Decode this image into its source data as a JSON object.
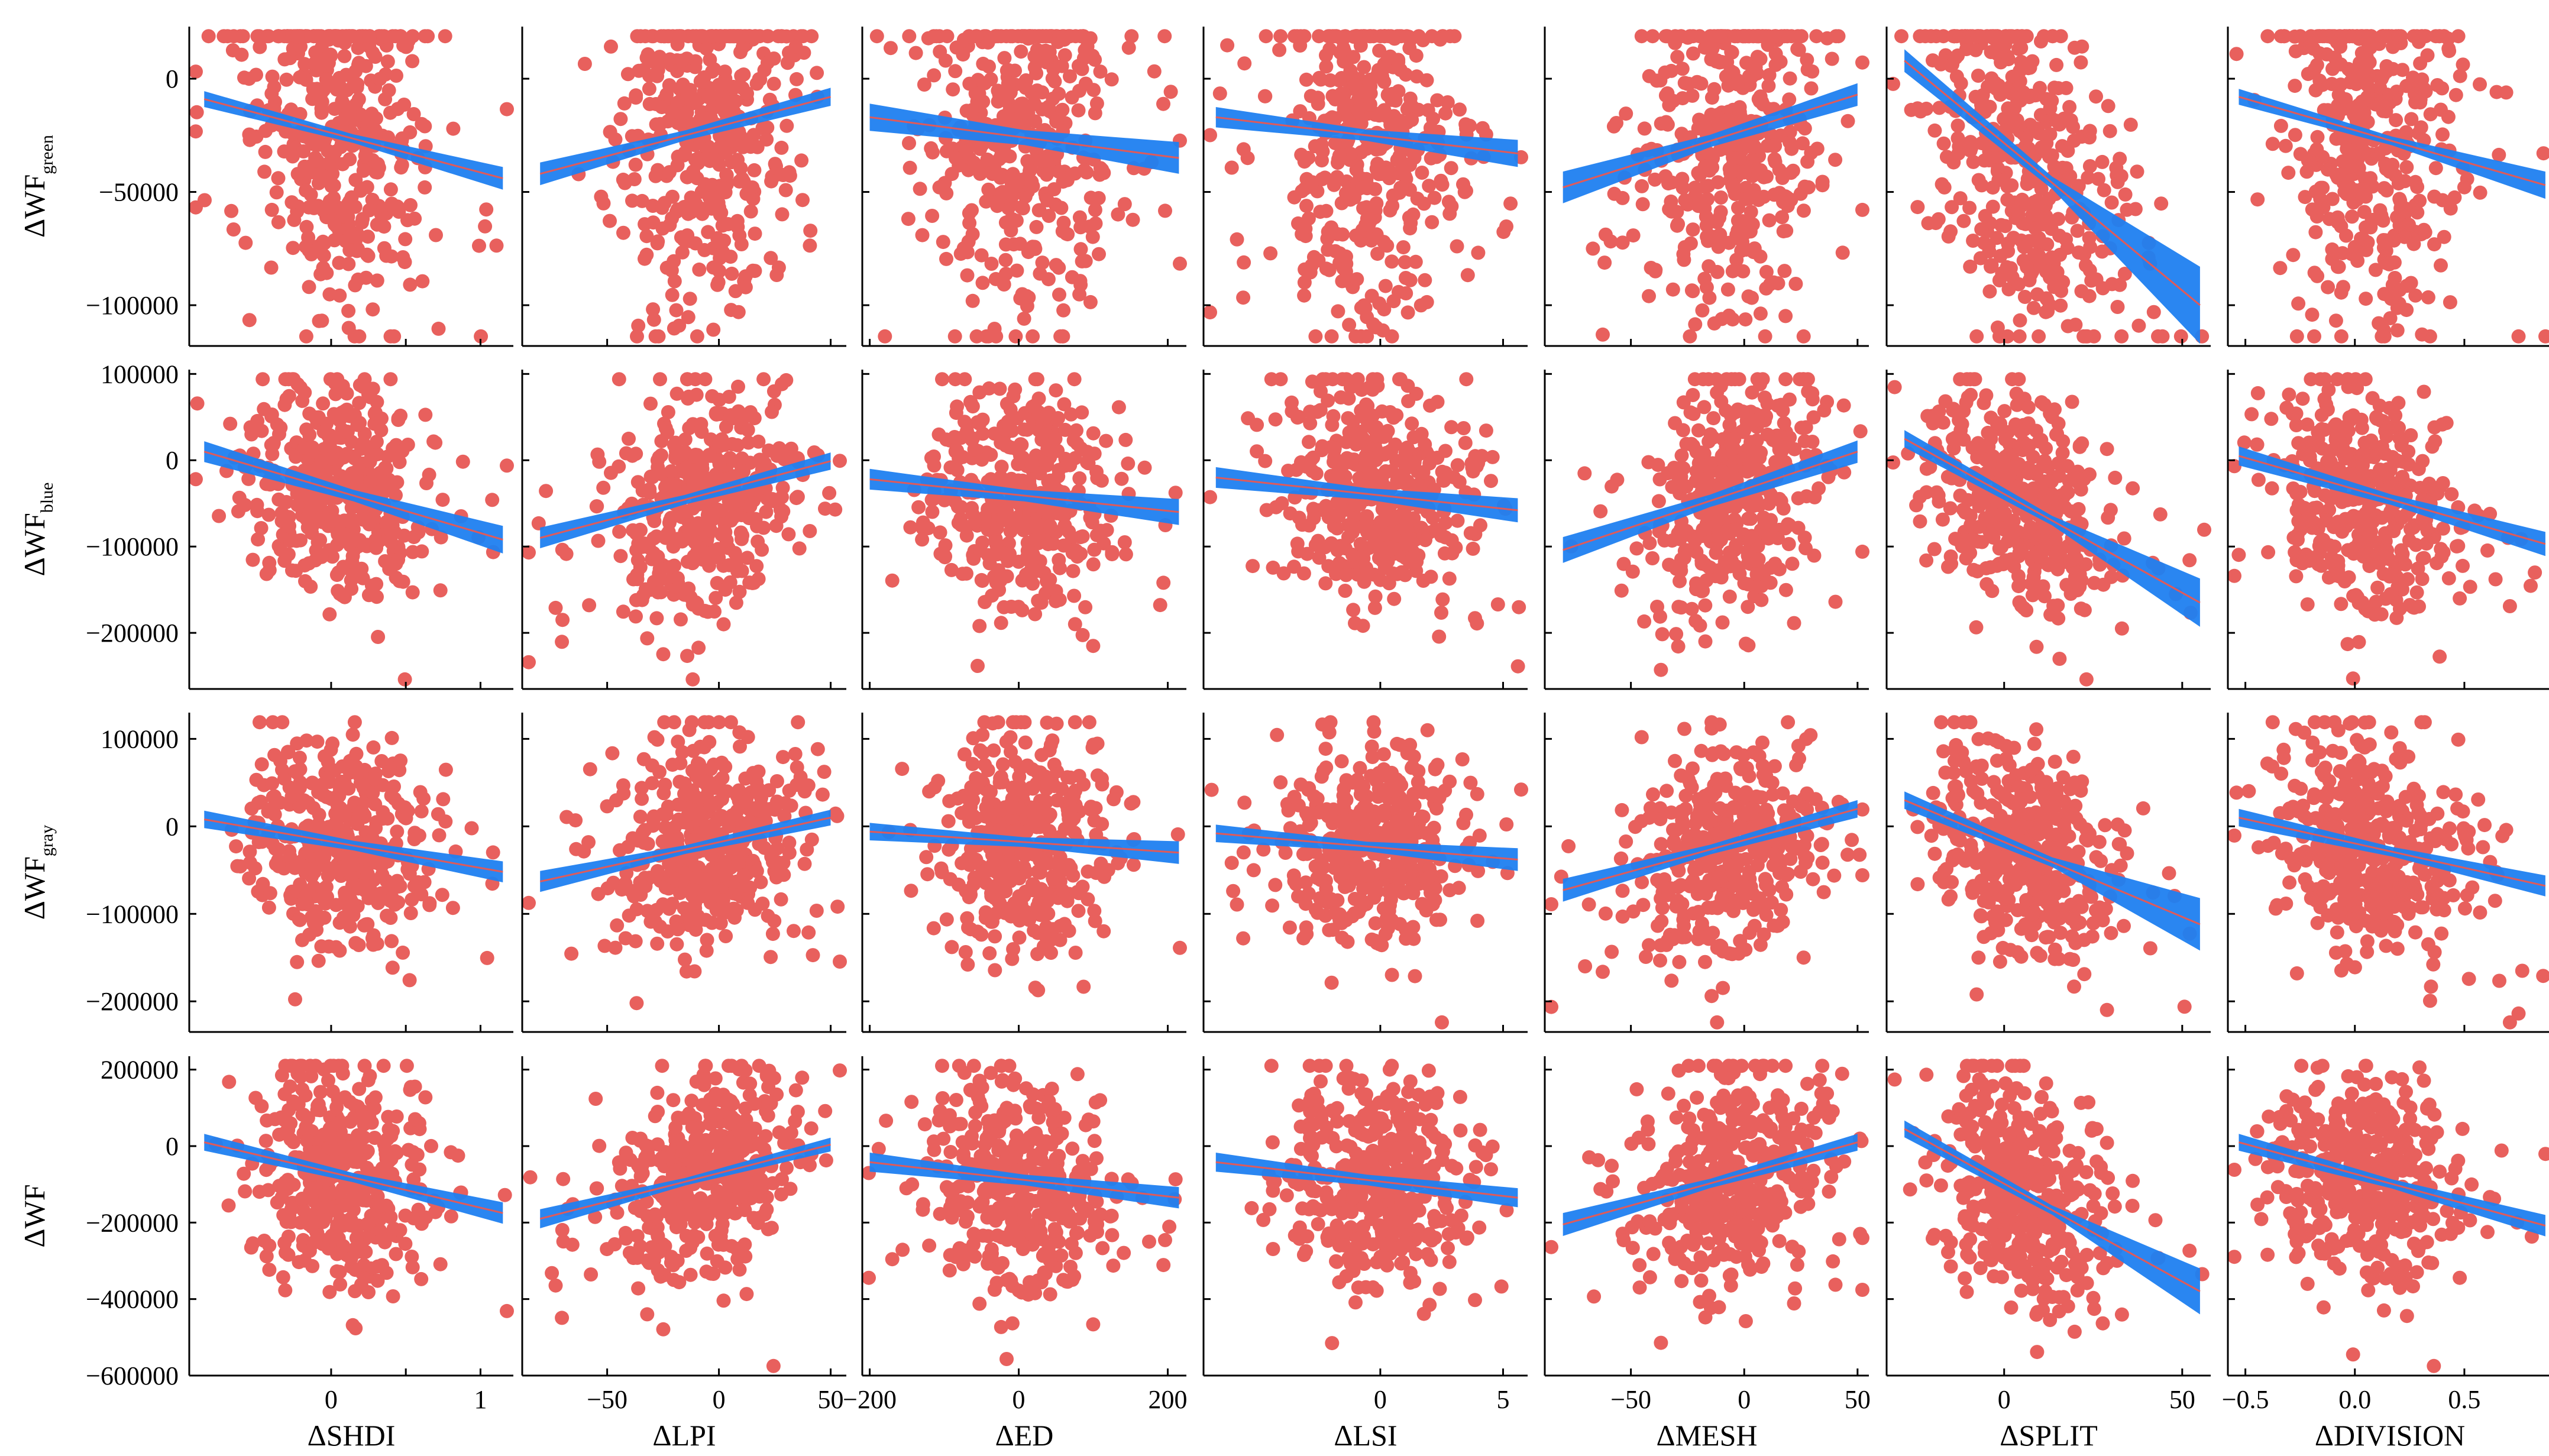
{
  "chart_data": {
    "type": "scatter",
    "layout": "4x7 grid of scatter plots with linear regression fit and confidence band",
    "colors": {
      "points": "#e8605d",
      "fit_band": "#1f7ff0",
      "fit_line": "#e05a5a"
    },
    "columns": [
      {
        "name": "ΔSHDI",
        "xlim": [
          -0.95,
          1.22
        ],
        "ticks": [
          0,
          0.5,
          1
        ],
        "tick_labels": [
          "0",
          "",
          "1"
        ]
      },
      {
        "name": "ΔLPI",
        "xlim": [
          -88,
          57
        ],
        "ticks": [
          -50,
          0,
          50
        ],
        "tick_labels": [
          "−50",
          "0",
          "50"
        ]
      },
      {
        "name": "ΔED",
        "xlim": [
          -210,
          225
        ],
        "ticks": [
          -200,
          0,
          200
        ],
        "tick_labels": [
          "−200",
          "0",
          "200"
        ]
      },
      {
        "name": "ΔLSI",
        "xlim": [
          -7.2,
          6.0
        ],
        "ticks": [
          0,
          5
        ],
        "tick_labels": [
          "0",
          "5"
        ]
      },
      {
        "name": "ΔMESH",
        "xlim": [
          -88,
          55
        ],
        "ticks": [
          -50,
          0,
          50
        ],
        "tick_labels": [
          "−50",
          "0",
          "50"
        ]
      },
      {
        "name": "ΔSPLIT",
        "xlim": [
          -33,
          58
        ],
        "ticks": [
          0,
          50
        ],
        "tick_labels": [
          "0",
          "50"
        ]
      },
      {
        "name": "ΔDIVISION",
        "xlim": [
          -0.58,
          0.9
        ],
        "ticks": [
          -0.5,
          0,
          0.5
        ],
        "tick_labels": [
          "−0.5",
          "0.0",
          "0.5"
        ]
      }
    ],
    "rows": [
      {
        "base": "ΔWF",
        "subscript": "green",
        "ylim": [
          -118000,
          23000
        ],
        "ticks": [
          0,
          -50000,
          -100000
        ],
        "tick_labels": [
          "0",
          "−50000",
          "−100000"
        ],
        "scale": 40000
      },
      {
        "base": "ΔWF",
        "subscript": "blue",
        "ylim": [
          -265000,
          105000
        ],
        "ticks": [
          100000,
          0,
          -100000,
          -200000
        ],
        "tick_labels": [
          "100000",
          "0",
          "−100000",
          "−200000"
        ],
        "scale": 65000
      },
      {
        "base": "ΔWF",
        "subscript": "gray",
        "ylim": [
          -235000,
          130000
        ],
        "ticks": [
          100000,
          0,
          -100000,
          -200000
        ],
        "tick_labels": [
          "100000",
          "0",
          "−100000",
          "−200000"
        ],
        "scale": 60000
      },
      {
        "base": "ΔWF",
        "subscript": "",
        "ylim": [
          -600000,
          235000
        ],
        "ticks": [
          200000,
          0,
          -200000,
          -400000,
          -600000
        ],
        "tick_labels": [
          "200000",
          "0",
          "−200000",
          "−400000",
          "−600000"
        ],
        "scale": 140000
      }
    ],
    "fits": [
      [
        {
          "x": [
            -0.85,
            1.15
          ],
          "y": [
            -9000,
            -44000
          ],
          "band": [
            3500,
            5000
          ]
        },
        {
          "x": [
            -80,
            50
          ],
          "y": [
            -42000,
            -8000
          ],
          "band": [
            5000,
            4000
          ]
        },
        {
          "x": [
            -200,
            215
          ],
          "y": [
            -17000,
            -35000
          ],
          "band": [
            6000,
            7000
          ]
        },
        {
          "x": [
            -6.7,
            5.6
          ],
          "y": [
            -17000,
            -33000
          ],
          "band": [
            4500,
            6000
          ]
        },
        {
          "x": [
            -80,
            50
          ],
          "y": [
            -48000,
            -7000
          ],
          "band": [
            7000,
            5000
          ]
        },
        {
          "x": [
            -28,
            55
          ],
          "y": [
            8000,
            -100000
          ],
          "band": [
            5000,
            17000
          ]
        },
        {
          "x": [
            -0.53,
            0.87
          ],
          "y": [
            -8000,
            -47000
          ],
          "band": [
            3500,
            6000
          ]
        }
      ],
      [
        {
          "x": [
            -0.85,
            1.15
          ],
          "y": [
            10000,
            -92000
          ],
          "band": [
            12000,
            16000
          ]
        },
        {
          "x": [
            -80,
            50
          ],
          "y": [
            -90000,
            -1000
          ],
          "band": [
            12000,
            10000
          ]
        },
        {
          "x": [
            -200,
            215
          ],
          "y": [
            -22000,
            -60000
          ],
          "band": [
            12000,
            15000
          ]
        },
        {
          "x": [
            -6.7,
            5.6
          ],
          "y": [
            -20000,
            -58000
          ],
          "band": [
            12000,
            14000
          ]
        },
        {
          "x": [
            -80,
            50
          ],
          "y": [
            -104000,
            10000
          ],
          "band": [
            15000,
            13000
          ]
        },
        {
          "x": [
            -28,
            55
          ],
          "y": [
            25000,
            -165000
          ],
          "band": [
            10000,
            28000
          ]
        },
        {
          "x": [
            -0.53,
            0.87
          ],
          "y": [
            5000,
            -97000
          ],
          "band": [
            11000,
            14000
          ]
        }
      ],
      [
        {
          "x": [
            -0.85,
            1.15
          ],
          "y": [
            8000,
            -52000
          ],
          "band": [
            10000,
            12000
          ]
        },
        {
          "x": [
            -80,
            50
          ],
          "y": [
            -63000,
            10000
          ],
          "band": [
            12000,
            9000
          ]
        },
        {
          "x": [
            -200,
            215
          ],
          "y": [
            -6000,
            -30000
          ],
          "band": [
            10000,
            13000
          ]
        },
        {
          "x": [
            -6.7,
            5.6
          ],
          "y": [
            -8000,
            -38000
          ],
          "band": [
            10000,
            13000
          ]
        },
        {
          "x": [
            -80,
            50
          ],
          "y": [
            -73000,
            20000
          ],
          "band": [
            13000,
            10000
          ]
        },
        {
          "x": [
            -28,
            55
          ],
          "y": [
            30000,
            -112000
          ],
          "band": [
            10000,
            30000
          ]
        },
        {
          "x": [
            -0.53,
            0.87
          ],
          "y": [
            10000,
            -68000
          ],
          "band": [
            10000,
            12000
          ]
        }
      ],
      [
        {
          "x": [
            -0.85,
            1.15
          ],
          "y": [
            10000,
            -175000
          ],
          "band": [
            22000,
            28000
          ]
        },
        {
          "x": [
            -80,
            50
          ],
          "y": [
            -190000,
            4000
          ],
          "band": [
            25000,
            18000
          ]
        },
        {
          "x": [
            -200,
            215
          ],
          "y": [
            -42000,
            -135000
          ],
          "band": [
            25000,
            28000
          ]
        },
        {
          "x": [
            -6.7,
            5.6
          ],
          "y": [
            -42000,
            -135000
          ],
          "band": [
            25000,
            25000
          ]
        },
        {
          "x": [
            -80,
            50
          ],
          "y": [
            -205000,
            10000
          ],
          "band": [
            30000,
            22000
          ]
        },
        {
          "x": [
            -28,
            55
          ],
          "y": [
            45000,
            -380000
          ],
          "band": [
            22000,
            60000
          ]
        },
        {
          "x": [
            -0.53,
            0.87
          ],
          "y": [
            10000,
            -208000
          ],
          "band": [
            22000,
            28000
          ]
        }
      ]
    ],
    "points_per_panel": 420,
    "grid": false,
    "legend": "none"
  }
}
